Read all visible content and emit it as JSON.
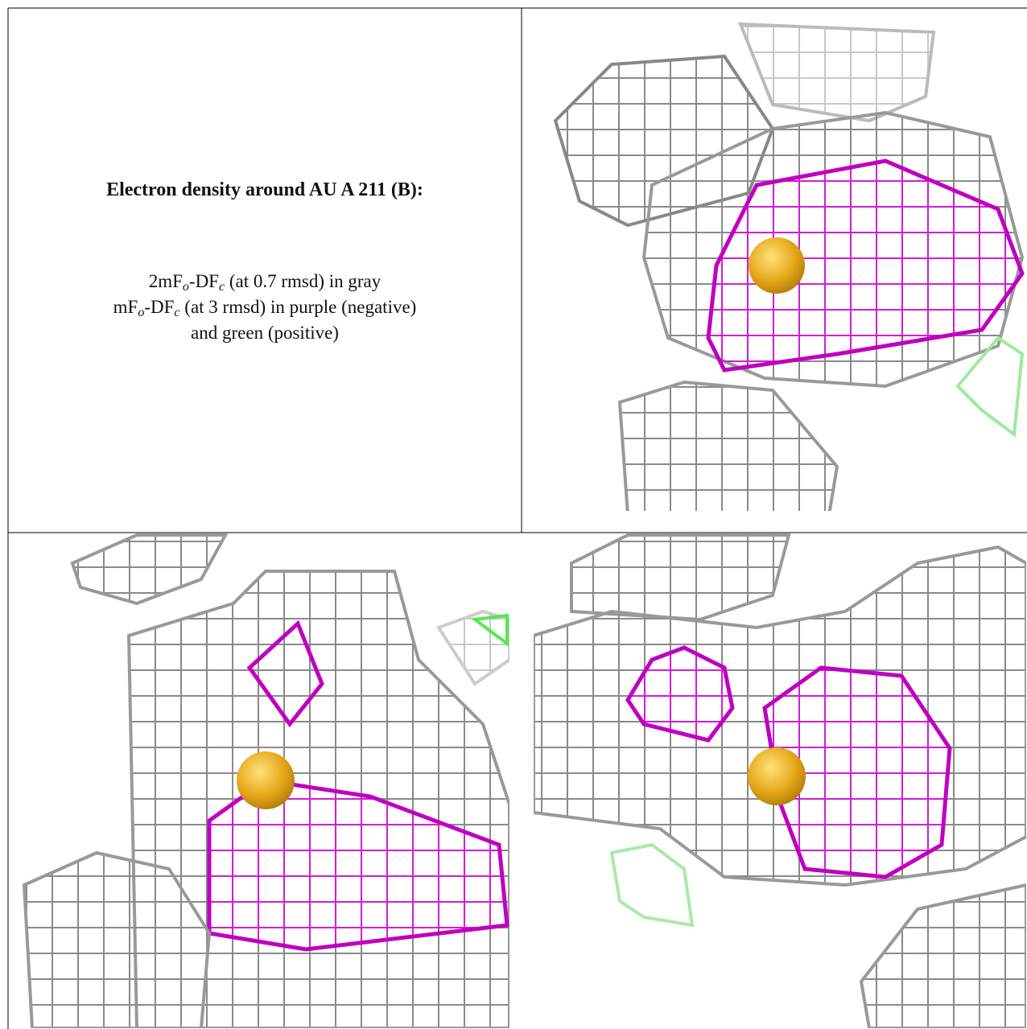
{
  "caption": {
    "title": "Electron density around AU A 211 (B):",
    "lines": [
      [
        "2mF",
        "o",
        "-DF",
        "c",
        " (at 0.7 rmsd) in gray"
      ],
      [
        "mF",
        "o",
        "-DF",
        "c",
        " (at 3 rmsd) in purple (negative)"
      ],
      [
        "and green (positive)"
      ]
    ]
  }
}
